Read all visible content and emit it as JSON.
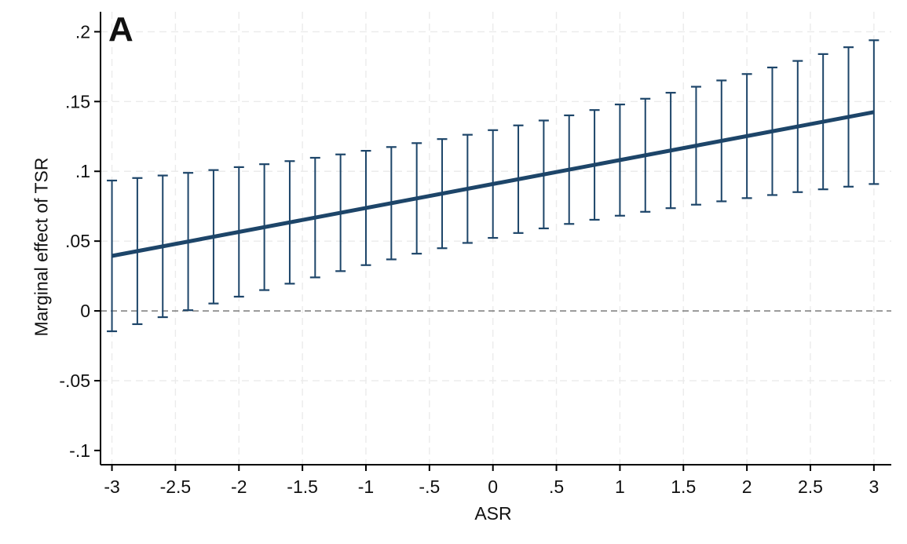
{
  "figure": {
    "panel_label": "A",
    "x_axis_title": "ASR",
    "y_axis_title": "Marginal effect of TSR"
  },
  "chart_data": {
    "type": "line",
    "title": "A",
    "xlabel": "ASR",
    "ylabel": "Marginal effect of TSR",
    "xlim": [
      -3.09,
      3.137
    ],
    "ylim": [
      -0.1102,
      0.2143
    ],
    "grid": true,
    "legend": "none",
    "x_ticks": [
      -3,
      -2.5,
      -2,
      -1.5,
      -1,
      -0.5,
      0,
      0.5,
      1,
      1.5,
      2,
      2.5,
      3
    ],
    "x_tick_labels": [
      "-3",
      "-2.5",
      "-2",
      "-1.5",
      "-1",
      "-.5",
      "0",
      ".5",
      "1",
      "1.5",
      "2",
      "2.5",
      "3"
    ],
    "y_ticks": [
      -0.1,
      -0.05,
      0,
      0.05,
      0.1,
      0.15,
      0.2
    ],
    "y_tick_labels": [
      "-.1",
      "-.05",
      "0",
      ".05",
      ".1",
      ".15",
      ".2"
    ],
    "y_gridlines": [
      -0.05,
      0.05,
      0.1,
      0.15,
      0.2
    ],
    "zero_reference_line_y": 0,
    "marginal_effect_line": {
      "x_start": -3,
      "y_start": 0.0394,
      "x_end": 3,
      "y_end": 0.1424,
      "intercept": 0.0909,
      "slope": 0.0172
    },
    "confidence_interval_bars": [
      {
        "x": -3.0,
        "low": -0.0146,
        "mid": 0.0394,
        "high": 0.0934
      },
      {
        "x": -2.8,
        "low": -0.0095,
        "mid": 0.0428,
        "high": 0.0952
      },
      {
        "x": -2.6,
        "low": -0.0045,
        "mid": 0.0463,
        "high": 0.097
      },
      {
        "x": -2.4,
        "low": 0.0005,
        "mid": 0.0497,
        "high": 0.0989
      },
      {
        "x": -2.2,
        "low": 0.0053,
        "mid": 0.0531,
        "high": 0.1009
      },
      {
        "x": -2.0,
        "low": 0.0102,
        "mid": 0.0566,
        "high": 0.103
      },
      {
        "x": -1.8,
        "low": 0.0149,
        "mid": 0.06,
        "high": 0.1051
      },
      {
        "x": -1.6,
        "low": 0.0195,
        "mid": 0.0634,
        "high": 0.1073
      },
      {
        "x": -1.4,
        "low": 0.024,
        "mid": 0.0669,
        "high": 0.1097
      },
      {
        "x": -1.2,
        "low": 0.0285,
        "mid": 0.0703,
        "high": 0.1121
      },
      {
        "x": -1.0,
        "low": 0.0328,
        "mid": 0.0737,
        "high": 0.1147
      },
      {
        "x": -0.8,
        "low": 0.0369,
        "mid": 0.0772,
        "high": 0.1174
      },
      {
        "x": -0.6,
        "low": 0.041,
        "mid": 0.0806,
        "high": 0.1202
      },
      {
        "x": -0.4,
        "low": 0.0449,
        "mid": 0.084,
        "high": 0.1231
      },
      {
        "x": -0.2,
        "low": 0.0487,
        "mid": 0.0875,
        "high": 0.1262
      },
      {
        "x": 0.0,
        "low": 0.0523,
        "mid": 0.0909,
        "high": 0.1295
      },
      {
        "x": 0.2,
        "low": 0.0558,
        "mid": 0.0943,
        "high": 0.1329
      },
      {
        "x": 0.4,
        "low": 0.0591,
        "mid": 0.0978,
        "high": 0.1364
      },
      {
        "x": 0.6,
        "low": 0.0623,
        "mid": 0.1012,
        "high": 0.1401
      },
      {
        "x": 0.8,
        "low": 0.0653,
        "mid": 0.1046,
        "high": 0.1439
      },
      {
        "x": 1.0,
        "low": 0.0682,
        "mid": 0.1081,
        "high": 0.1479
      },
      {
        "x": 1.2,
        "low": 0.071,
        "mid": 0.1115,
        "high": 0.152
      },
      {
        "x": 1.4,
        "low": 0.0736,
        "mid": 0.1149,
        "high": 0.1563
      },
      {
        "x": 1.6,
        "low": 0.0761,
        "mid": 0.1184,
        "high": 0.1606
      },
      {
        "x": 1.8,
        "low": 0.0785,
        "mid": 0.1218,
        "high": 0.1651
      },
      {
        "x": 2.0,
        "low": 0.0808,
        "mid": 0.1252,
        "high": 0.1697
      },
      {
        "x": 2.2,
        "low": 0.083,
        "mid": 0.1287,
        "high": 0.1744
      },
      {
        "x": 2.4,
        "low": 0.0851,
        "mid": 0.1321,
        "high": 0.1791
      },
      {
        "x": 2.6,
        "low": 0.0871,
        "mid": 0.1355,
        "high": 0.184
      },
      {
        "x": 2.8,
        "low": 0.089,
        "mid": 0.139,
        "high": 0.1889
      },
      {
        "x": 3.0,
        "low": 0.0909,
        "mid": 0.1424,
        "high": 0.1939
      }
    ],
    "colors": {
      "series": "#1d4569",
      "grid": "#ebebeb",
      "zero_line": "#4d4d4d",
      "axis": "#000000",
      "text": "#111111"
    }
  }
}
